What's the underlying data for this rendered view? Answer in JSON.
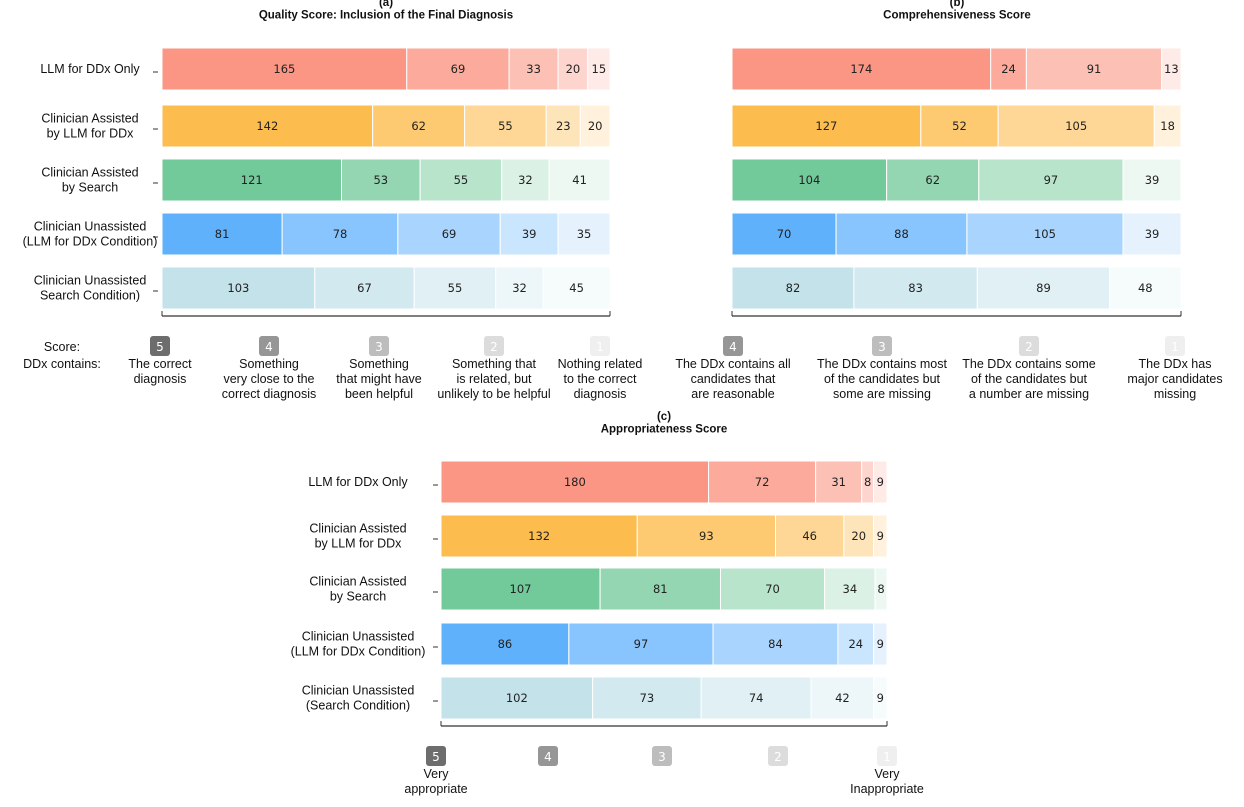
{
  "colors": {
    "llm_only": [
      "#fb9584",
      "#fbaa9c",
      "#fcc0b5",
      "#fdd5ce",
      "#feeae6"
    ],
    "assisted_llm": [
      "#fdbd4e",
      "#fdca72",
      "#fed796",
      "#fee4b9",
      "#fff1dc"
    ],
    "assisted_search": [
      "#72c99a",
      "#95d6b2",
      "#b8e4cc",
      "#dcf1e5",
      "#edf8f2"
    ],
    "unassisted_llm": [
      "#60b1fc",
      "#88c4fd",
      "#a9d4fd",
      "#cae5fe",
      "#e5f2fe"
    ],
    "unassisted_search": [
      "#c3e2ea",
      "#d2e9ef",
      "#e1f0f4",
      "#edf6f8",
      "#f6fbfc"
    ],
    "badges": [
      "#6d6d6d",
      "#969696",
      "#bdbdbd",
      "#dcdcdc",
      "#efefef"
    ]
  },
  "chart_data": [
    {
      "id": "a",
      "type": "bar",
      "orientation": "horizontal-stacked",
      "panel_label": "(a)",
      "title": "Quality Score: Inclusion of the Final Diagnosis",
      "categories": [
        "LLM for DDx Only",
        "Clinician Assisted\nby LLM for DDx",
        "Clinician Assisted\nby Search",
        "Clinician Unassisted\n(LLM for DDx Condition)",
        "Clinician Unassisted\nSearch Condition)"
      ],
      "series": [
        {
          "score": "5",
          "values": [
            165,
            142,
            121,
            81,
            103
          ]
        },
        {
          "score": "4",
          "values": [
            69,
            62,
            53,
            78,
            67
          ]
        },
        {
          "score": "3",
          "values": [
            33,
            55,
            55,
            69,
            55
          ]
        },
        {
          "score": "2",
          "values": [
            20,
            23,
            32,
            39,
            32
          ]
        },
        {
          "score": "1",
          "values": [
            15,
            20,
            41,
            35,
            45
          ]
        }
      ],
      "legend_heading": "Score:",
      "legend_row_heading": "DDx contains:",
      "legend_descriptions": [
        "The correct\ndiagnosis",
        "Something\nvery close to the\ncorrect diagnosis",
        "Something\nthat might have\nbeen helpful",
        "Something that\nis related, but\nunlikely to be helpful",
        "Nothing related\nto the correct\ndiagnosis"
      ]
    },
    {
      "id": "b",
      "type": "bar",
      "orientation": "horizontal-stacked",
      "panel_label": "(b)",
      "title": "Comprehensiveness Score",
      "categories": [
        "LLM for DDx Only",
        "Clinician Assisted\nby LLM for DDx",
        "Clinician Assisted\nby Search",
        "Clinician Unassisted\n(LLM for DDx Condition)",
        "Clinician Unassisted\nSearch Condition)"
      ],
      "series": [
        {
          "score": "4",
          "values": [
            174,
            127,
            104,
            70,
            82
          ]
        },
        {
          "score": "3",
          "values": [
            24,
            52,
            62,
            88,
            83
          ]
        },
        {
          "score": "2",
          "values": [
            91,
            105,
            97,
            105,
            89
          ]
        },
        {
          "score": "1",
          "values": [
            13,
            18,
            39,
            39,
            48
          ]
        }
      ],
      "legend_descriptions": [
        "The DDx contains all\ncandidates that\nare reasonable",
        "The DDx contains most\nof the candidates but\nsome are missing",
        "The DDx contains some\nof the candidates but\na number are missing",
        "The DDx has\nmajor candidates\nmissing"
      ]
    },
    {
      "id": "c",
      "type": "bar",
      "orientation": "horizontal-stacked",
      "panel_label": "(c)",
      "title": "Appropriateness Score",
      "categories": [
        "LLM for DDx Only",
        "Clinician Assisted\nby LLM for DDx",
        "Clinician Assisted\nby Search",
        "Clinician Unassisted\n(LLM for DDx Condition)",
        "Clinician Unassisted\n(Search Condition)"
      ],
      "series": [
        {
          "score": "5",
          "values": [
            180,
            132,
            107,
            86,
            102
          ]
        },
        {
          "score": "4",
          "values": [
            72,
            93,
            81,
            97,
            73
          ]
        },
        {
          "score": "3",
          "values": [
            31,
            46,
            70,
            84,
            74
          ]
        },
        {
          "score": "2",
          "values": [
            8,
            20,
            34,
            24,
            42
          ]
        },
        {
          "score": "1",
          "values": [
            9,
            9,
            8,
            9,
            9
          ]
        }
      ],
      "legend_descriptions": [
        "Very\nappropriate",
        "",
        "",
        "",
        "Very\nInappropriate"
      ]
    }
  ]
}
